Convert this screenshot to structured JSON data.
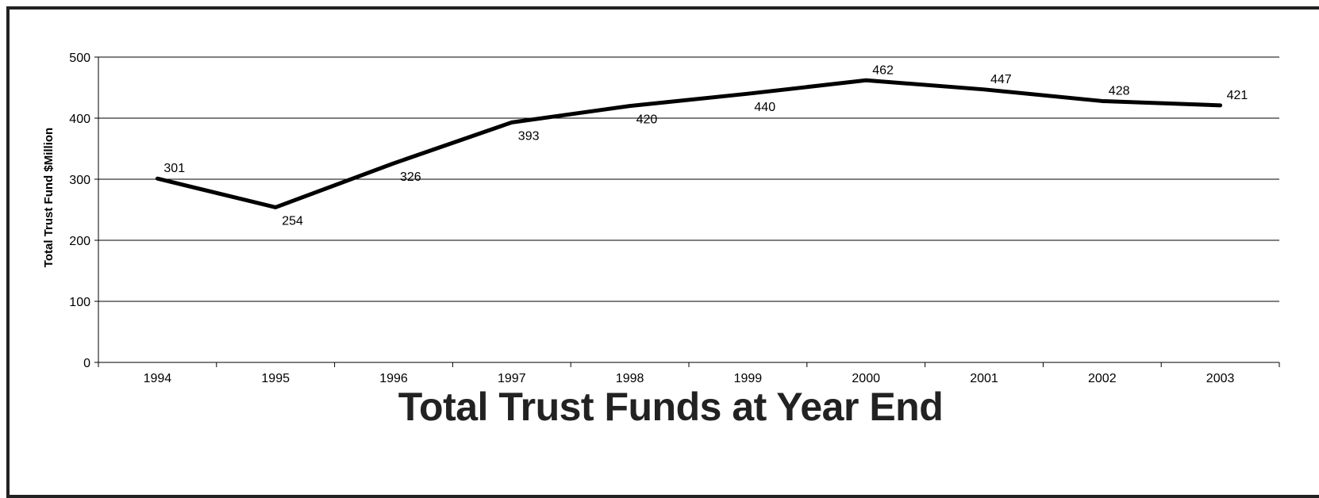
{
  "chart_data": {
    "type": "line",
    "title": "Total Trust Funds at Year End",
    "xlabel": "",
    "ylabel": "Total Trust Fund $Million",
    "ylim": [
      0,
      500
    ],
    "yticks": [
      0,
      100,
      200,
      300,
      400,
      500
    ],
    "grid": true,
    "categories": [
      "1994",
      "1995",
      "1996",
      "1997",
      "1998",
      "1999",
      "2000",
      "2001",
      "2002",
      "2003"
    ],
    "series": [
      {
        "values": [
          301,
          254,
          326,
          393,
          420,
          440,
          462,
          447,
          428,
          421
        ],
        "color": "#000000"
      }
    ]
  }
}
